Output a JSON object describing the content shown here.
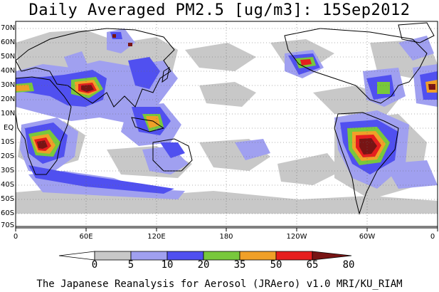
{
  "title": "Daily Averaged PM2.5 [ug/m3]: 15Sep2012",
  "footer": "The Japanese Reanalysis for Aerosol (JRAero) v1.0 MRI/KU_RIAM",
  "lat_labels": [
    "70N",
    "60N",
    "50N",
    "40N",
    "30N",
    "20N",
    "10N",
    "EQ",
    "10S",
    "20S",
    "30S",
    "40S",
    "50S",
    "60S",
    "70S"
  ],
  "lon_labels": [
    "0",
    "60E",
    "120E",
    "180",
    "120W",
    "60W",
    "0"
  ],
  "colorbar": {
    "labels": [
      "0",
      "5",
      "10",
      "20",
      "35",
      "50",
      "65",
      "80"
    ],
    "colors": [
      "#ffffff",
      "#c8c8c8",
      "#a0a0f0",
      "#5050f0",
      "#78c83c",
      "#f0a028",
      "#e61e1e",
      "#781414"
    ]
  },
  "colors": {
    "low": "#c8c8c8",
    "light_blue": "#a0a0f0",
    "blue": "#5050f0",
    "green": "#78c83c",
    "orange": "#f0a028",
    "red": "#e61e1e",
    "dark_red": "#781414"
  }
}
